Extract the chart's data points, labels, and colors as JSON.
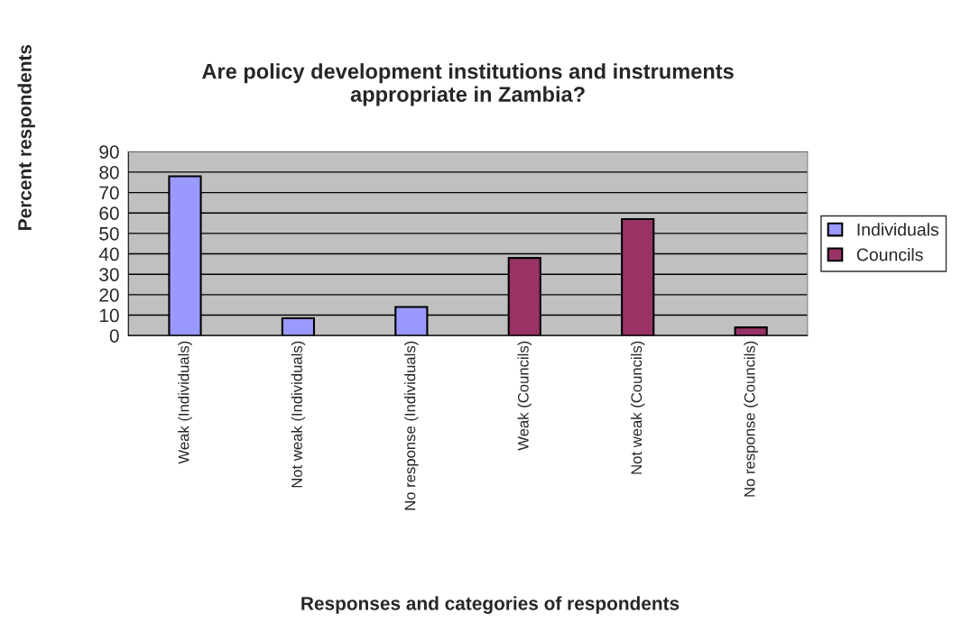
{
  "chart_data": {
    "type": "bar",
    "title": "Are policy development institutions and instruments\nappropriate in Zambia?",
    "xlabel": "Responses and categories of respondents",
    "ylabel": "Percent respondents",
    "categories": [
      "Weak (Individuals)",
      "Not weak (Individuals)",
      "No response (Individuals)",
      "Weak (Councils)",
      "Not weak (Councils)",
      "No response (Councils)"
    ],
    "series": [
      {
        "name": "Individuals",
        "color": "#9999ff",
        "values": [
          78,
          8.5,
          14,
          null,
          null,
          null
        ]
      },
      {
        "name": "Councils",
        "color": "#993366",
        "values": [
          null,
          null,
          null,
          38,
          57,
          4
        ]
      }
    ],
    "ylim": [
      0,
      90
    ],
    "yticks": [
      0,
      10,
      20,
      30,
      40,
      50,
      60,
      70,
      80,
      90
    ],
    "grid": "y",
    "legend": "right"
  }
}
